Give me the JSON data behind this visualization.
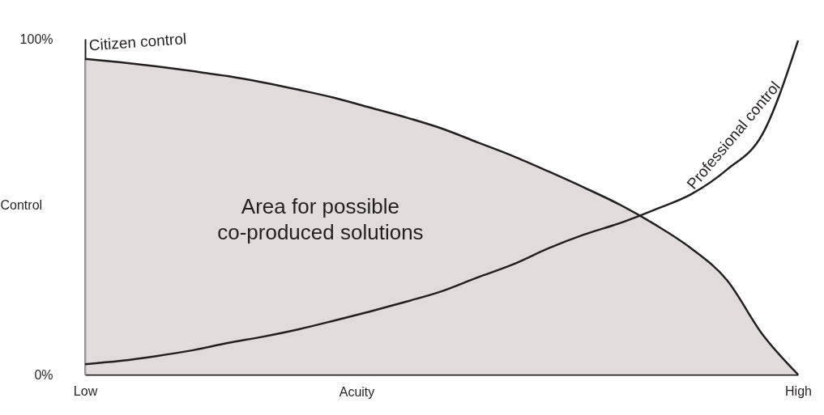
{
  "chart_data": {
    "type": "area",
    "xlabel": "Acuity",
    "ylabel": "Control",
    "categories": [
      "Low",
      null,
      null,
      null,
      null,
      null,
      null,
      null,
      null,
      null,
      null,
      null,
      null,
      null,
      null,
      null,
      null,
      null,
      null,
      null,
      "High"
    ],
    "ylim": [
      0,
      100
    ],
    "yticks": [
      {
        "value": 0,
        "label": "0%"
      },
      {
        "value": 100,
        "label": "100%"
      }
    ],
    "annotations": [
      "Area for possible\nco-produced solutions"
    ],
    "series": [
      {
        "name": "Citizen control",
        "color": "#d6cccc",
        "values": [
          94.0,
          93.0,
          91.8,
          90.4,
          88.9,
          87.0,
          84.8,
          82.4,
          79.5,
          76.6,
          73.3,
          69.2,
          65.1,
          60.5,
          55.7,
          50.6,
          44.6,
          37.6,
          28.2,
          12.0,
          0
        ]
      },
      {
        "name": "Professional control",
        "type": "line",
        "color": "#231f20",
        "values": [
          3.1,
          4.1,
          5.5,
          7.2,
          9.4,
          11.3,
          13.5,
          16.1,
          18.8,
          21.7,
          24.8,
          28.9,
          32.8,
          37.6,
          41.7,
          45.1,
          49.2,
          53.7,
          61.0,
          71.6,
          99.5
        ]
      }
    ]
  }
}
